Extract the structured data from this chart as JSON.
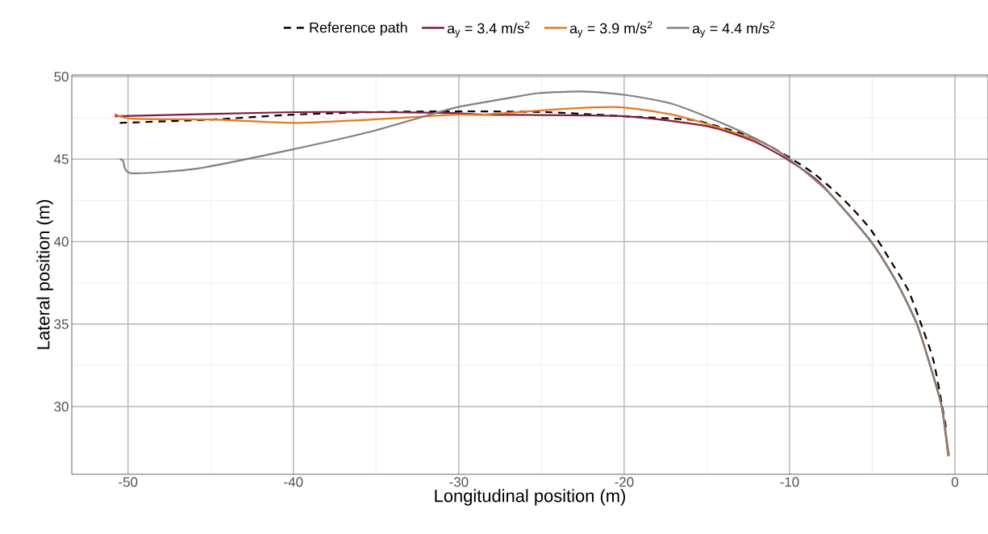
{
  "chart_data": {
    "type": "line",
    "xlabel": "Longitudinal position (m)",
    "ylabel": "Lateral position (m)",
    "xlim": [
      -53.4,
      2.0
    ],
    "ylim": [
      25.9,
      50.1
    ],
    "xticks": [
      -50,
      -40,
      -30,
      -20,
      -10,
      0
    ],
    "yticks": [
      30,
      35,
      40,
      45,
      50
    ],
    "grid": true,
    "legend": "top",
    "series": [
      {
        "name": "Reference path",
        "color": "#000000",
        "line_style": "dashed",
        "x": [
          -50.5,
          -44.9,
          -40,
          -35.2,
          -30.3,
          -24.7,
          -20,
          -16.1,
          -14.7,
          -12.2,
          -10,
          -8.5,
          -7.2,
          -6.2,
          -5.07,
          -3.75,
          -2.8,
          -1.9,
          -1.3,
          -0.8,
          -0.5
        ],
        "values": [
          47.2,
          47.4,
          47.7,
          47.85,
          47.9,
          47.85,
          47.6,
          47.4,
          47.1,
          46.3,
          45.1,
          44.1,
          43.0,
          42.0,
          40.7,
          38.6,
          37.0,
          34.6,
          32.8,
          30.2,
          28.5
        ]
      },
      {
        "name": "a$_{y}$ = 3.4 m/s$^{2}$",
        "color": "#7f1d41",
        "line_style": "solid",
        "x": [
          -50.8,
          -40,
          -35.2,
          -30.3,
          -28.5,
          -20,
          -15,
          -12.2,
          -10,
          -8.1,
          -5.07,
          -3.5,
          -2.3,
          -1.5,
          -0.8,
          -0.4
        ],
        "values": [
          47.6,
          47.85,
          47.85,
          47.8,
          47.7,
          47.6,
          47.0,
          46.1,
          44.9,
          43.5,
          40.0,
          37.5,
          35.0,
          32.5,
          30.0,
          27.0
        ]
      },
      {
        "name": "a$_{y}$ = 3.9 m/s$^{2}$",
        "color": "#e87722",
        "line_style": "solid",
        "x": [
          -50.8,
          -49.8,
          -44.9,
          -40,
          -35.2,
          -30.3,
          -28.5,
          -23.6,
          -20.3,
          -17.1,
          -13.9,
          -11.4,
          -10,
          -7.65,
          -5.07,
          -3.5,
          -2.3,
          -1.5,
          -0.8,
          -0.35
        ],
        "values": [
          47.75,
          47.45,
          47.4,
          47.2,
          47.4,
          47.7,
          47.7,
          48.05,
          48.15,
          47.7,
          46.8,
          45.9,
          45.0,
          43.0,
          40.0,
          37.5,
          35.0,
          32.5,
          30.0,
          27.0
        ]
      },
      {
        "name": "a$_{y}$ = 4.4 m/s$^{2}$",
        "color": "#808080",
        "line_style": "solid",
        "x": [
          -50.5,
          -50.3,
          -49.8,
          -45.7,
          -40,
          -35.2,
          -30.3,
          -27,
          -25.2,
          -22.6,
          -20,
          -17.1,
          -13.9,
          -11.4,
          -10,
          -7.65,
          -5.07,
          -3.5,
          -2.3,
          -1.5,
          -0.8,
          -0.4
        ],
        "values": [
          45.0,
          44.9,
          44.15,
          44.45,
          45.6,
          46.7,
          48.1,
          48.7,
          49.0,
          49.1,
          48.9,
          48.35,
          47.1,
          45.9,
          45.0,
          43.0,
          40.0,
          37.5,
          35.0,
          32.5,
          30.0,
          27.0
        ]
      }
    ]
  }
}
